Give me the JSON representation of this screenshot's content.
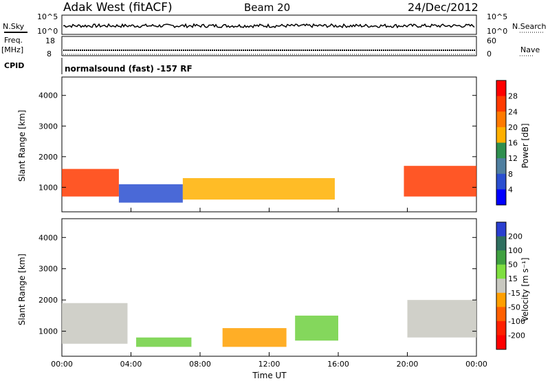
{
  "header": {
    "title_left": "Adak West (fitACF)",
    "title_center": "Beam 20",
    "title_right": "24/Dec/2012"
  },
  "top_panels": {
    "nsky_label": "N.Sky",
    "nsky_ticks": [
      "10^5",
      "10^0"
    ],
    "nsearch_label": "N.Search",
    "nsearch_ticks": [
      "10^5",
      "10^0"
    ],
    "freq_label_1": "Freq.",
    "freq_label_2": "[MHz]",
    "freq_ticks": [
      "18",
      "8"
    ],
    "nave_label": "Nave",
    "nave_ticks": [
      "60",
      "0"
    ],
    "cpid_label": "CPID",
    "cpid_text": "normalsound (fast) -157 RF"
  },
  "chart_data": [
    {
      "type": "heatmap",
      "name": "power",
      "ylabel": "Slant Range [km]",
      "yticks": [
        "4000",
        "3000",
        "2000",
        "1000"
      ],
      "ytick_values": [
        4000,
        3000,
        2000,
        1000
      ],
      "ylim": [
        200,
        4600
      ],
      "xlim": [
        0,
        24
      ],
      "colorbar": {
        "label": "Power [dB]",
        "ticks": [
          "28",
          "24",
          "20",
          "16",
          "12",
          "8",
          "4"
        ],
        "colors": [
          "#ff0000",
          "#ff3a00",
          "#ff7a00",
          "#ffb000",
          "#2f8f4f",
          "#4f7fa0",
          "#2a4fd0",
          "#0000ff"
        ]
      },
      "echo_bands": [
        {
          "t0": 0.0,
          "t1": 3.3,
          "r0": 700,
          "r1": 1600,
          "power": 27
        },
        {
          "t0": 3.3,
          "t1": 7.0,
          "r0": 500,
          "r1": 1100,
          "power": 6
        },
        {
          "t0": 7.0,
          "t1": 15.8,
          "r0": 600,
          "r1": 1300,
          "power": 18
        },
        {
          "t0": 19.8,
          "t1": 24.0,
          "r0": 700,
          "r1": 1700,
          "power": 26
        }
      ]
    },
    {
      "type": "heatmap",
      "name": "velocity",
      "ylabel": "Slant Range [km]",
      "yticks": [
        "4000",
        "3000",
        "2000",
        "1000"
      ],
      "ytick_values": [
        4000,
        3000,
        2000,
        1000
      ],
      "ylim": [
        200,
        4600
      ],
      "xlim": [
        0,
        24
      ],
      "colorbar": {
        "label": "Velocity [m s⁻¹]",
        "ticks": [
          "200",
          "100",
          "50",
          "15",
          "-15",
          "-50",
          "-100",
          "-200"
        ],
        "colors": [
          "#2a3fd0",
          "#2f6f5f",
          "#3fa040",
          "#7fdf40",
          "#c8c8c0",
          "#ff9f00",
          "#ff6000",
          "#ff2000",
          "#ff0000"
        ]
      },
      "echo_bands": [
        {
          "t0": 0.0,
          "t1": 3.8,
          "r0": 600,
          "r1": 1900,
          "velocity": 0
        },
        {
          "t0": 4.3,
          "t1": 7.5,
          "r0": 500,
          "r1": 800,
          "velocity": 30
        },
        {
          "t0": 9.3,
          "t1": 13.0,
          "r0": 500,
          "r1": 1100,
          "velocity": -40
        },
        {
          "t0": 13.5,
          "t1": 16.0,
          "r0": 700,
          "r1": 1500,
          "velocity": 40
        },
        {
          "t0": 20.0,
          "t1": 24.0,
          "r0": 800,
          "r1": 2000,
          "velocity": 0
        }
      ]
    }
  ],
  "x_axis": {
    "ticks": [
      "00:00",
      "04:00",
      "08:00",
      "12:00",
      "16:00",
      "20:00",
      "00:00"
    ],
    "label": "Time UT"
  }
}
